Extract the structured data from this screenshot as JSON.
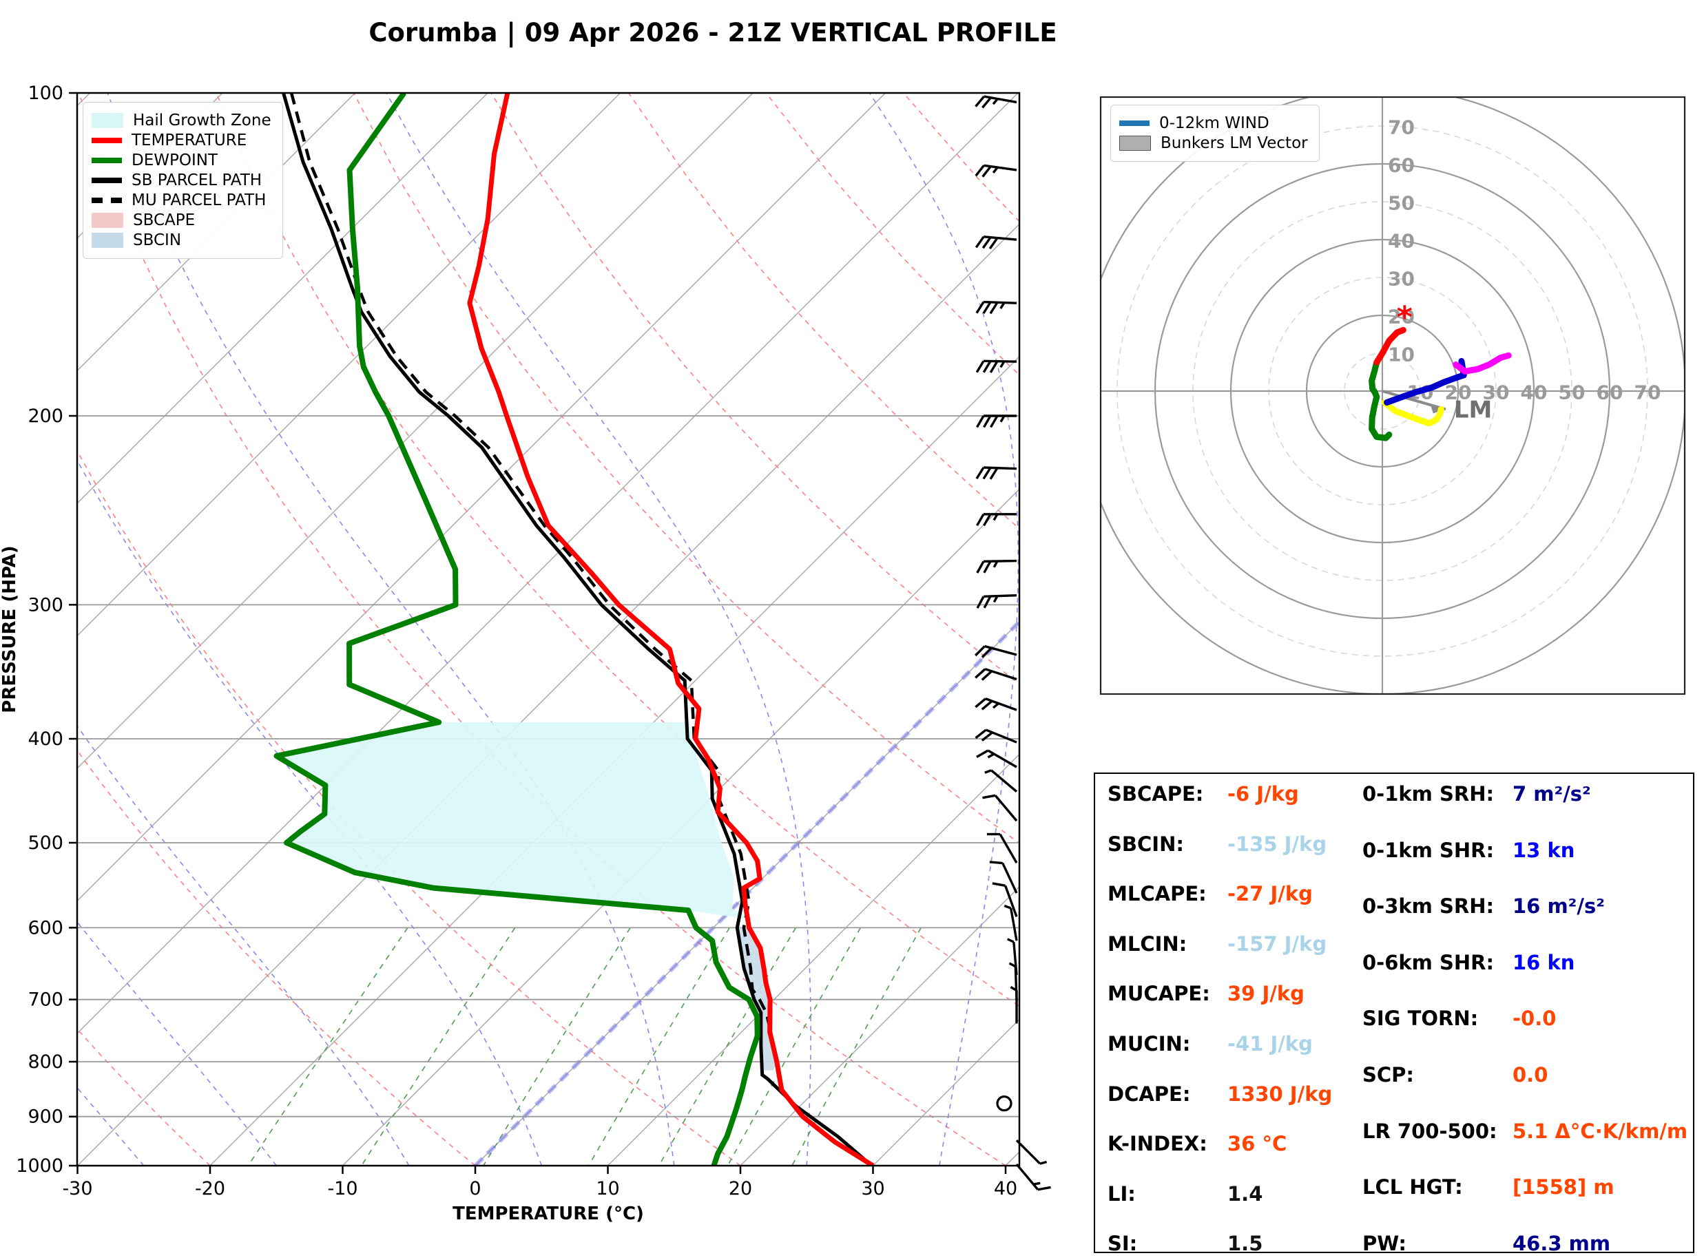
{
  "title": "Corumba | 09 Apr 2026 - 21Z VERTICAL PROFILE",
  "skewt": {
    "xlabel": "TEMPERATURE (°C)",
    "ylabel": "PRESSURE (HPA)",
    "x_ticks": [
      -30,
      -20,
      -10,
      0,
      10,
      20,
      30,
      40
    ],
    "y_ticks": [
      100,
      200,
      300,
      400,
      500,
      600,
      700,
      800,
      900,
      1000
    ],
    "legend": [
      {
        "label": "Hail Growth Zone",
        "type": "patch",
        "color": "#d9f7f7"
      },
      {
        "label": "TEMPERATURE",
        "type": "line",
        "color": "#ff0000"
      },
      {
        "label": "DEWPOINT",
        "type": "line",
        "color": "#008000"
      },
      {
        "label": "SB PARCEL PATH",
        "type": "line",
        "color": "#000000"
      },
      {
        "label": "MU PARCEL PATH",
        "type": "dashed",
        "color": "#000000"
      },
      {
        "label": "SBCAPE",
        "type": "patch",
        "color": "#f5c9c9"
      },
      {
        "label": "SBCIN",
        "type": "patch",
        "color": "#c6dbe9"
      }
    ]
  },
  "hodograph": {
    "legend": [
      {
        "label": "0-12km WIND",
        "type": "line",
        "color": "#1f77b4"
      },
      {
        "label": "Bunkers LM Vector",
        "type": "patch",
        "color": "#b0b0b0"
      }
    ],
    "ring_labels": [
      10,
      20,
      30,
      40,
      50,
      60,
      70
    ],
    "lm_label": "LM"
  },
  "stats": {
    "left": [
      {
        "label": "SBCAPE:",
        "value": "-6 J/kg",
        "color": "orange"
      },
      {
        "label": "SBCIN:",
        "value": "-135 J/kg",
        "color": "lblue"
      },
      {
        "label": "MLCAPE:",
        "value": "-27 J/kg",
        "color": "orange"
      },
      {
        "label": "MLCIN:",
        "value": "-157 J/kg",
        "color": "lblue"
      },
      {
        "label": "MUCAPE:",
        "value": "39 J/kg",
        "color": "orange"
      },
      {
        "label": "MUCIN:",
        "value": "-41 J/kg",
        "color": "lblue"
      },
      {
        "label": "DCAPE:",
        "value": "1330 J/kg",
        "color": "orange"
      },
      {
        "label": "K-INDEX:",
        "value": "36 °C",
        "color": "orange"
      },
      {
        "label": "LI:",
        "value": "1.4",
        "color": "black"
      },
      {
        "label": "SI:",
        "value": "1.5",
        "color": "black"
      }
    ],
    "right": [
      {
        "label": "0-1km SRH:",
        "value": "7 m²/s²",
        "color": "navy"
      },
      {
        "label": "0-1km SHR:",
        "value": "13 kn",
        "color": "blue"
      },
      {
        "label": "0-3km SRH:",
        "value": "16 m²/s²",
        "color": "navy"
      },
      {
        "label": "0-6km SHR:",
        "value": "16 kn",
        "color": "blue"
      },
      {
        "label": "SIG TORN:",
        "value": "-0.0",
        "color": "orange"
      },
      {
        "label": "SCP:",
        "value": "0.0",
        "color": "orange"
      },
      {
        "label": "LR 700-500:",
        "value": "5.1 Δ°C·K/km/m",
        "color": "orange"
      },
      {
        "label": "LCL HGT:",
        "value": "[1558] m",
        "color": "orange"
      },
      {
        "label": "PW:",
        "value": "46.3 mm",
        "color": "navy"
      }
    ],
    "value_colors": {
      "orange": "#ff4500",
      "lblue": "#a8d3e8",
      "navy": "#00008b",
      "blue": "#0000ff",
      "black": "#111111"
    }
  },
  "chart_data": {
    "type": "skewt-log-p+hodograph",
    "pressure_range": [
      100,
      1000
    ],
    "temp_axis_range": [
      -30,
      40
    ],
    "freezing_isotherm_highlight": 0,
    "temperature_profile": [
      [
        100,
        -78.5
      ],
      [
        114,
        -74.9
      ],
      [
        131,
        -70.5
      ],
      [
        145,
        -67.6
      ],
      [
        157,
        -65.5
      ],
      [
        173,
        -61.2
      ],
      [
        190,
        -56.6
      ],
      [
        200,
        -54.2
      ],
      [
        228,
        -48.0
      ],
      [
        253,
        -42.8
      ],
      [
        280,
        -36.0
      ],
      [
        300,
        -31.5
      ],
      [
        330,
        -24.3
      ],
      [
        355,
        -21.1
      ],
      [
        375,
        -17.6
      ],
      [
        400,
        -15.6
      ],
      [
        417,
        -13.2
      ],
      [
        445,
        -10.0
      ],
      [
        468,
        -8.4
      ],
      [
        500,
        -3.9
      ],
      [
        520,
        -1.7
      ],
      [
        540,
        -0.2
      ],
      [
        551,
        -0.7
      ],
      [
        570,
        0.6
      ],
      [
        600,
        2.7
      ],
      [
        627,
        5.1
      ],
      [
        655,
        6.9
      ],
      [
        675,
        8.1
      ],
      [
        700,
        9.7
      ],
      [
        750,
        12.1
      ],
      [
        800,
        14.9
      ],
      [
        850,
        17.4
      ],
      [
        900,
        21.0
      ],
      [
        950,
        25.3
      ],
      [
        1000,
        30.0
      ]
    ],
    "dewpoint_profile": [
      [
        100,
        -86.3
      ],
      [
        118,
        -84.6
      ],
      [
        134,
        -79.9
      ],
      [
        152,
        -75.1
      ],
      [
        172,
        -70.6
      ],
      [
        180,
        -68.7
      ],
      [
        190,
        -65.9
      ],
      [
        200,
        -63.1
      ],
      [
        239,
        -54.1
      ],
      [
        278,
        -46.5
      ],
      [
        300,
        -43.8
      ],
      [
        326,
        -48.9
      ],
      [
        356,
        -45.8
      ],
      [
        386,
        -36.2
      ],
      [
        415,
        -45.9
      ],
      [
        442,
        -40.0
      ],
      [
        470,
        -37.9
      ],
      [
        488,
        -38.4
      ],
      [
        500,
        -38.6
      ],
      [
        533,
        -31.2
      ],
      [
        551,
        -24.1
      ],
      [
        578,
        -3.2
      ],
      [
        600,
        -1.3
      ],
      [
        617,
        0.9
      ],
      [
        646,
        2.8
      ],
      [
        682,
        5.7
      ],
      [
        700,
        8.1
      ],
      [
        726,
        10.0
      ],
      [
        757,
        11.5
      ],
      [
        790,
        12.5
      ],
      [
        825,
        13.6
      ],
      [
        850,
        14.4
      ],
      [
        885,
        15.4
      ],
      [
        940,
        16.8
      ],
      [
        975,
        17.4
      ],
      [
        1000,
        18.0
      ]
    ],
    "sb_parcel_path": [
      [
        100,
        -95.4
      ],
      [
        116,
        -88.7
      ],
      [
        134,
        -81.5
      ],
      [
        152,
        -75.5
      ],
      [
        160,
        -73.0
      ],
      [
        176,
        -67.5
      ],
      [
        190,
        -62.6
      ],
      [
        200,
        -58.6
      ],
      [
        214,
        -53.7
      ],
      [
        253,
        -43.7
      ],
      [
        271,
        -39.2
      ],
      [
        300,
        -32.8
      ],
      [
        330,
        -25.9
      ],
      [
        353,
        -20.8
      ],
      [
        400,
        -16.2
      ],
      [
        428,
        -12.0
      ],
      [
        455,
        -9.8
      ],
      [
        512,
        -4.0
      ],
      [
        567,
        0.2
      ],
      [
        600,
        1.8
      ],
      [
        655,
        5.4
      ],
      [
        700,
        8.5
      ],
      [
        720,
        10.0
      ],
      [
        773,
        12.5
      ],
      [
        823,
        14.8
      ],
      [
        830,
        15.5
      ],
      [
        880,
        19.7
      ],
      [
        940,
        25.2
      ],
      [
        1000,
        29.9
      ]
    ],
    "mu_parcel_path": [
      [
        100,
        -94.8
      ],
      [
        116,
        -88.2
      ],
      [
        134,
        -81.0
      ],
      [
        152,
        -75.0
      ],
      [
        160,
        -72.5
      ],
      [
        176,
        -67.0
      ],
      [
        190,
        -62.1
      ],
      [
        200,
        -58.1
      ],
      [
        214,
        -53.2
      ],
      [
        253,
        -43.1
      ],
      [
        271,
        -38.6
      ],
      [
        300,
        -32.2
      ],
      [
        330,
        -25.4
      ],
      [
        353,
        -20.3
      ],
      [
        400,
        -15.7
      ],
      [
        428,
        -11.5
      ],
      [
        455,
        -9.3
      ],
      [
        512,
        -3.5
      ],
      [
        567,
        0.7
      ],
      [
        600,
        2.3
      ],
      [
        655,
        5.9
      ],
      [
        685,
        7.6
      ],
      [
        700,
        8.9
      ],
      [
        720,
        10.4
      ],
      [
        754,
        12.4
      ]
    ],
    "hail_growth_zone": [
      [
        386,
        -36.2
      ],
      [
        386,
        -17.3
      ],
      [
        408,
        -15.0
      ],
      [
        454,
        -10.1
      ],
      [
        500,
        -5.8
      ],
      [
        539,
        -2.2
      ],
      [
        576,
        0.0
      ],
      [
        590,
        2.3
      ],
      [
        578,
        -3.2
      ],
      [
        551,
        -24.1
      ],
      [
        533,
        -31.2
      ],
      [
        500,
        -38.6
      ],
      [
        488,
        -38.4
      ],
      [
        470,
        -37.9
      ],
      [
        442,
        -40.0
      ],
      [
        415,
        -45.9
      ]
    ],
    "sbcin_zone": [
      [
        600,
        1.8
      ],
      [
        655,
        5.4
      ],
      [
        700,
        8.5
      ],
      [
        720,
        10.0
      ],
      [
        773,
        12.5
      ],
      [
        815,
        14.6
      ],
      [
        815,
        15.3
      ],
      [
        800,
        14.9
      ],
      [
        750,
        12.1
      ],
      [
        700,
        9.7
      ],
      [
        675,
        8.1
      ],
      [
        655,
        6.9
      ],
      [
        627,
        5.1
      ],
      [
        600,
        2.7
      ]
    ],
    "wind_barbs_p_dir_kn": [
      [
        102,
        280,
        25
      ],
      [
        118,
        278,
        25
      ],
      [
        137,
        275,
        30
      ],
      [
        157,
        272,
        35
      ],
      [
        178,
        271,
        35
      ],
      [
        200,
        270,
        35
      ],
      [
        224,
        272,
        30
      ],
      [
        247,
        270,
        25
      ],
      [
        273,
        269,
        25
      ],
      [
        294,
        268,
        25
      ],
      [
        334,
        285,
        20
      ],
      [
        352,
        288,
        20
      ],
      [
        376,
        290,
        25
      ],
      [
        403,
        292,
        20
      ],
      [
        425,
        300,
        15
      ],
      [
        448,
        310,
        5
      ],
      [
        477,
        320,
        10
      ],
      [
        522,
        330,
        10
      ],
      [
        557,
        335,
        10
      ],
      [
        586,
        340,
        10
      ],
      [
        617,
        350,
        5
      ],
      [
        664,
        355,
        5
      ],
      [
        700,
        358,
        5
      ],
      [
        737,
        0,
        5
      ],
      [
        875,
        0,
        0
      ],
      [
        947,
        135,
        5
      ],
      [
        997,
        140,
        15
      ]
    ],
    "hodograph_rings_kn": [
      10,
      20,
      30,
      40,
      50,
      60,
      70,
      80
    ],
    "hodograph_segments": [
      {
        "color": "#ffff00",
        "points": [
          [
            0.6,
            -3
          ],
          [
            3.3,
            -5.2
          ],
          [
            6.4,
            -6.4
          ],
          [
            9.7,
            -7.6
          ],
          [
            12.4,
            -8.5
          ],
          [
            14.2,
            -7.6
          ],
          [
            15.2,
            -6.1
          ],
          [
            15.5,
            -4.8
          ]
        ]
      },
      {
        "color": "#008000",
        "points": [
          [
            -1.5,
            7.6
          ],
          [
            -2.1,
            5.2
          ],
          [
            -2.8,
            2.7
          ],
          [
            -2.6,
            0.6
          ],
          [
            -2.0,
            -0.3
          ],
          [
            -1.5,
            -1.5
          ],
          [
            -2.1,
            -3.9
          ],
          [
            -2.7,
            -7.0
          ],
          [
            -2.8,
            -10.0
          ],
          [
            -1.5,
            -12.1
          ],
          [
            0.9,
            -12.4
          ],
          [
            1.8,
            -11.5
          ]
        ]
      },
      {
        "color": "#ff0000",
        "points": [
          [
            5.5,
            16.1
          ],
          [
            3.9,
            15.5
          ],
          [
            1.8,
            13.3
          ],
          [
            0,
            10
          ],
          [
            -1.5,
            7.6
          ]
        ]
      },
      {
        "color": "#0000cc",
        "points": [
          [
            1.2,
            -3
          ],
          [
            4.5,
            -1.8
          ],
          [
            8.8,
            -0.3
          ],
          [
            13,
            0.9
          ],
          [
            16.4,
            2.4
          ],
          [
            19.7,
            3.6
          ],
          [
            21.5,
            4.2
          ],
          [
            20.9,
            7.9
          ]
        ]
      },
      {
        "color": "#ff00ff",
        "points": [
          [
            19.4,
            7
          ],
          [
            21.8,
            5.2
          ],
          [
            25.2,
            5.8
          ],
          [
            28.2,
            7
          ],
          [
            31.2,
            8.8
          ],
          [
            33.3,
            9.4
          ]
        ]
      }
    ],
    "bunkers_lm_vector": [
      16.7,
      -4.8
    ]
  }
}
